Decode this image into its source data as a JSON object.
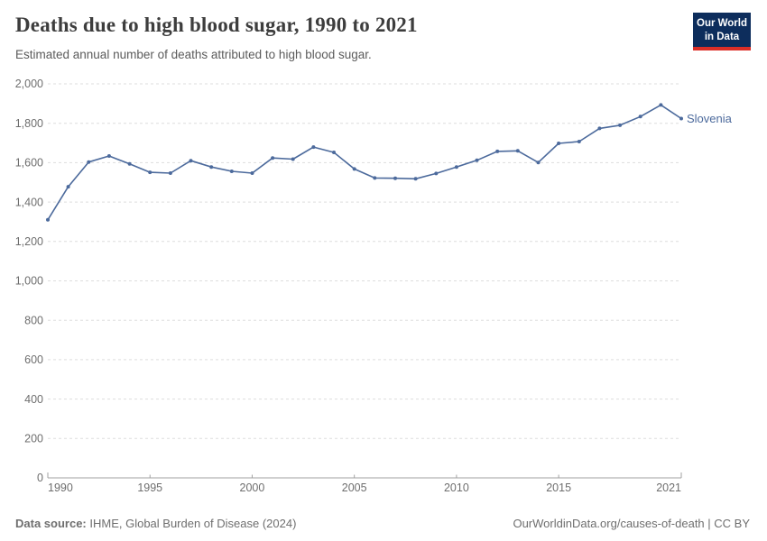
{
  "header": {
    "title": "Deaths due to high blood sugar, 1990 to 2021",
    "subtitle": "Estimated annual number of deaths attributed to high blood sugar."
  },
  "logo": {
    "line1": "Our World",
    "line2": "in Data",
    "bg_color": "#0d2d5c",
    "accent_color": "#dc2e27"
  },
  "footer": {
    "data_source_label": "Data source:",
    "data_source_value": " IHME, Global Burden of Disease (2024)",
    "license": "OurWorldinData.org/causes-of-death | CC BY"
  },
  "colors": {
    "series_blue": "#4C6A9C",
    "gridline": "#dddddd",
    "axis_line": "#a1a1a1",
    "tick_label": "#6e6e6e"
  },
  "chart_data": {
    "type": "line",
    "title": "Deaths due to high blood sugar, 1990 to 2021",
    "subtitle": "Estimated annual number of deaths attributed to high blood sugar.",
    "xlabel": "",
    "ylabel": "",
    "x": [
      1990,
      1991,
      1992,
      1993,
      1994,
      1995,
      1996,
      1997,
      1998,
      1999,
      2000,
      2001,
      2002,
      2003,
      2004,
      2005,
      2006,
      2007,
      2008,
      2009,
      2010,
      2011,
      2012,
      2013,
      2014,
      2015,
      2016,
      2017,
      2018,
      2019,
      2020,
      2021
    ],
    "series": [
      {
        "name": "Slovenia",
        "color": "#4C6A9C",
        "values": [
          1310,
          1478,
          1603,
          1634,
          1594,
          1551,
          1547,
          1610,
          1578,
          1556,
          1547,
          1624,
          1618,
          1679,
          1652,
          1568,
          1522,
          1521,
          1518,
          1545,
          1578,
          1612,
          1657,
          1660,
          1601,
          1698,
          1707,
          1774,
          1790,
          1834,
          1893,
          1824
        ]
      }
    ],
    "ylim": [
      0,
      2000
    ],
    "yticks": [
      0,
      200,
      400,
      600,
      800,
      1000,
      1200,
      1400,
      1600,
      1800,
      2000
    ],
    "xticks": [
      1990,
      1995,
      2000,
      2005,
      2010,
      2015,
      2021
    ],
    "grid": "horizontal-dashed",
    "legend": "end-of-line-label",
    "end_label": "Slovenia"
  }
}
